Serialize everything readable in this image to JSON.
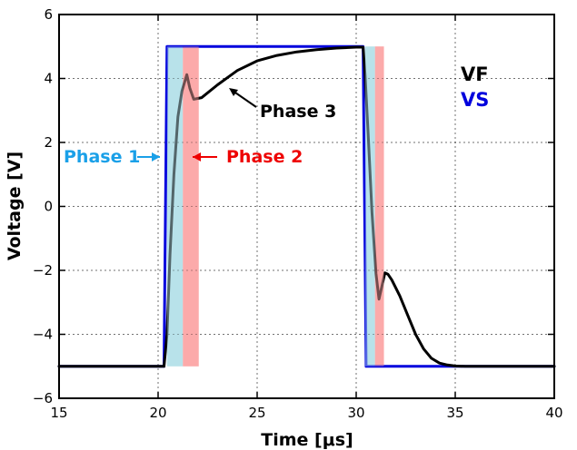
{
  "chart_data": {
    "type": "line",
    "xlabel": "Time [μs]",
    "ylabel": "Voltage [V]",
    "xlim": [
      15,
      40
    ],
    "ylim": [
      -6,
      6
    ],
    "x_ticks": [
      15,
      20,
      25,
      30,
      35,
      40
    ],
    "y_ticks": [
      -6,
      -4,
      -2,
      0,
      2,
      4,
      6
    ],
    "x_tick_labels": [
      "15",
      "20",
      "25",
      "30",
      "35",
      "40"
    ],
    "y_tick_labels": [
      "−6",
      "−4",
      "−2",
      "0",
      "2",
      "4",
      "6"
    ],
    "grid": true,
    "legend_position": "right",
    "series": [
      {
        "name": "VS",
        "color": "#0000dd",
        "x": [
          15,
          20.3,
          20.45,
          30.35,
          30.5,
          40
        ],
        "y": [
          -5,
          -5,
          5,
          5,
          -5,
          -5
        ]
      },
      {
        "name": "VF",
        "color": "#000000",
        "x": [
          15,
          20.3,
          20.45,
          20.6,
          20.8,
          21.0,
          21.2,
          21.45,
          21.6,
          21.8,
          22.2,
          23,
          24,
          25,
          26,
          27,
          28,
          29,
          30,
          30.35,
          30.45,
          30.6,
          30.8,
          31.0,
          31.15,
          31.3,
          31.45,
          31.6,
          31.8,
          32.2,
          32.6,
          33.0,
          33.4,
          33.8,
          34.2,
          34.6,
          35.0,
          35.5,
          36,
          40
        ],
        "y": [
          -5,
          -5,
          -4.0,
          -1.5,
          1.0,
          2.8,
          3.6,
          4.12,
          3.7,
          3.35,
          3.4,
          3.8,
          4.25,
          4.55,
          4.72,
          4.83,
          4.9,
          4.95,
          4.98,
          4.98,
          4.1,
          2.3,
          -0.2,
          -2.1,
          -2.9,
          -2.5,
          -2.08,
          -2.12,
          -2.3,
          -2.8,
          -3.4,
          -4.0,
          -4.45,
          -4.75,
          -4.9,
          -4.96,
          -4.99,
          -5.0,
          -5.0,
          -5.0
        ]
      }
    ],
    "shaded_regions": [
      {
        "phase": "Phase 1",
        "x_start": 20.45,
        "x_end": 21.25,
        "color": "#b8e2ea"
      },
      {
        "phase": "Phase 2",
        "x_start": 21.25,
        "x_end": 22.05,
        "color": "#fcaaaa"
      },
      {
        "phase": "Phase 1",
        "x_start": 30.45,
        "x_end": 30.95,
        "color": "#b8e2ea"
      },
      {
        "phase": "Phase 2",
        "x_start": 30.95,
        "x_end": 31.4,
        "color": "#fcaaaa"
      }
    ],
    "annotations": [
      {
        "text": "Phase 1",
        "color": "#1aa0e8"
      },
      {
        "text": "Phase 2",
        "color": "#ee0000"
      },
      {
        "text": "Phase 3",
        "color": "#000000"
      }
    ],
    "legend": [
      {
        "label": "VF",
        "color": "#000000"
      },
      {
        "label": "VS",
        "color": "#0000dd"
      }
    ]
  }
}
